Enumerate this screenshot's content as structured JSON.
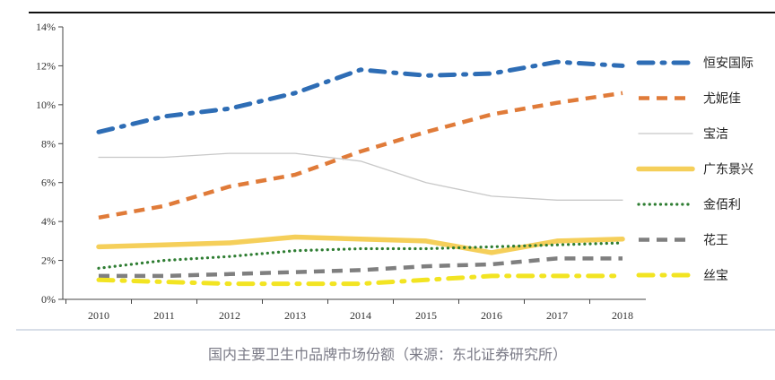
{
  "caption": "国内主要卫生巾品牌市场份额（来源：东北证券研究所）",
  "chart_data": {
    "type": "line",
    "x": [
      "2010",
      "2011",
      "2012",
      "2013",
      "2014",
      "2015",
      "2016",
      "2017",
      "2018"
    ],
    "ylim": [
      0,
      14
    ],
    "yticks": [
      "0%",
      "2%",
      "4%",
      "6%",
      "8%",
      "10%",
      "12%",
      "14%"
    ],
    "legend_position": "right",
    "series": [
      {
        "name": "恒安国际",
        "color": "#2e6db5",
        "style": "dash-dot-thick",
        "values": [
          8.6,
          9.4,
          9.8,
          10.6,
          11.8,
          11.5,
          11.6,
          12.2,
          12.0
        ]
      },
      {
        "name": "尤妮佳",
        "color": "#e07b39",
        "style": "dash-thick",
        "values": [
          4.2,
          4.8,
          5.8,
          6.4,
          7.6,
          8.6,
          9.5,
          10.1,
          10.6
        ]
      },
      {
        "name": "宝洁",
        "color": "#c8c8c8",
        "style": "solid-thin",
        "values": [
          7.3,
          7.3,
          7.5,
          7.5,
          7.1,
          6.0,
          5.3,
          5.1,
          5.1
        ]
      },
      {
        "name": "广东景兴",
        "color": "#f5cf5a",
        "style": "solid-thick",
        "values": [
          2.7,
          2.8,
          2.9,
          3.2,
          3.1,
          3.0,
          2.4,
          3.0,
          3.1
        ]
      },
      {
        "name": "金佰利",
        "color": "#2e7d32",
        "style": "dotted",
        "values": [
          1.6,
          2.0,
          2.2,
          2.5,
          2.6,
          2.6,
          2.7,
          2.8,
          2.9
        ]
      },
      {
        "name": "花王",
        "color": "#7f7f7f",
        "style": "dash-thick",
        "values": [
          1.2,
          1.2,
          1.3,
          1.4,
          1.5,
          1.7,
          1.8,
          2.1,
          2.1
        ]
      },
      {
        "name": "丝宝",
        "color": "#f2e422",
        "style": "dash-dot-thick",
        "values": [
          1.0,
          0.9,
          0.8,
          0.8,
          0.8,
          1.0,
          1.2,
          1.2,
          1.2
        ]
      }
    ]
  }
}
